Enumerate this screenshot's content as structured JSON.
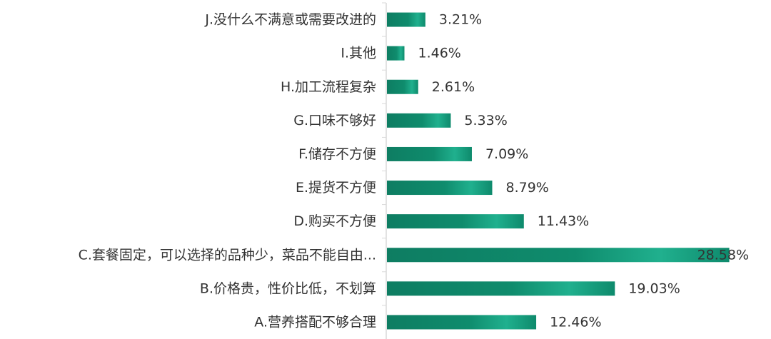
{
  "chart_data": {
    "type": "bar",
    "orientation": "horizontal",
    "categories": [
      "J.没什么不满意或需要改进的",
      "I.其他",
      "H.加工流程复杂",
      "G.口味不够好",
      "F.储存不方便",
      "E.提货不方便",
      "D.购买不方便",
      "C.套餐固定，可以选择的品种少，菜品不能自由...",
      "B.价格贵，性价比低，不划算",
      "A.营养搭配不够合理"
    ],
    "values": [
      3.21,
      1.46,
      2.61,
      5.33,
      7.09,
      8.79,
      11.43,
      28.58,
      19.03,
      12.46
    ],
    "value_labels": [
      "3.21%",
      "1.46%",
      "2.61%",
      "5.33%",
      "7.09%",
      "8.79%",
      "11.43%",
      "28.58%",
      "19.03%",
      "12.46%"
    ],
    "xlim": [
      0,
      29.5
    ],
    "grid": false,
    "legend": "none",
    "bar_color": "#0e8a6c",
    "bar_color_highlight": "#1fae8c",
    "title": "",
    "xlabel": "",
    "ylabel": ""
  }
}
